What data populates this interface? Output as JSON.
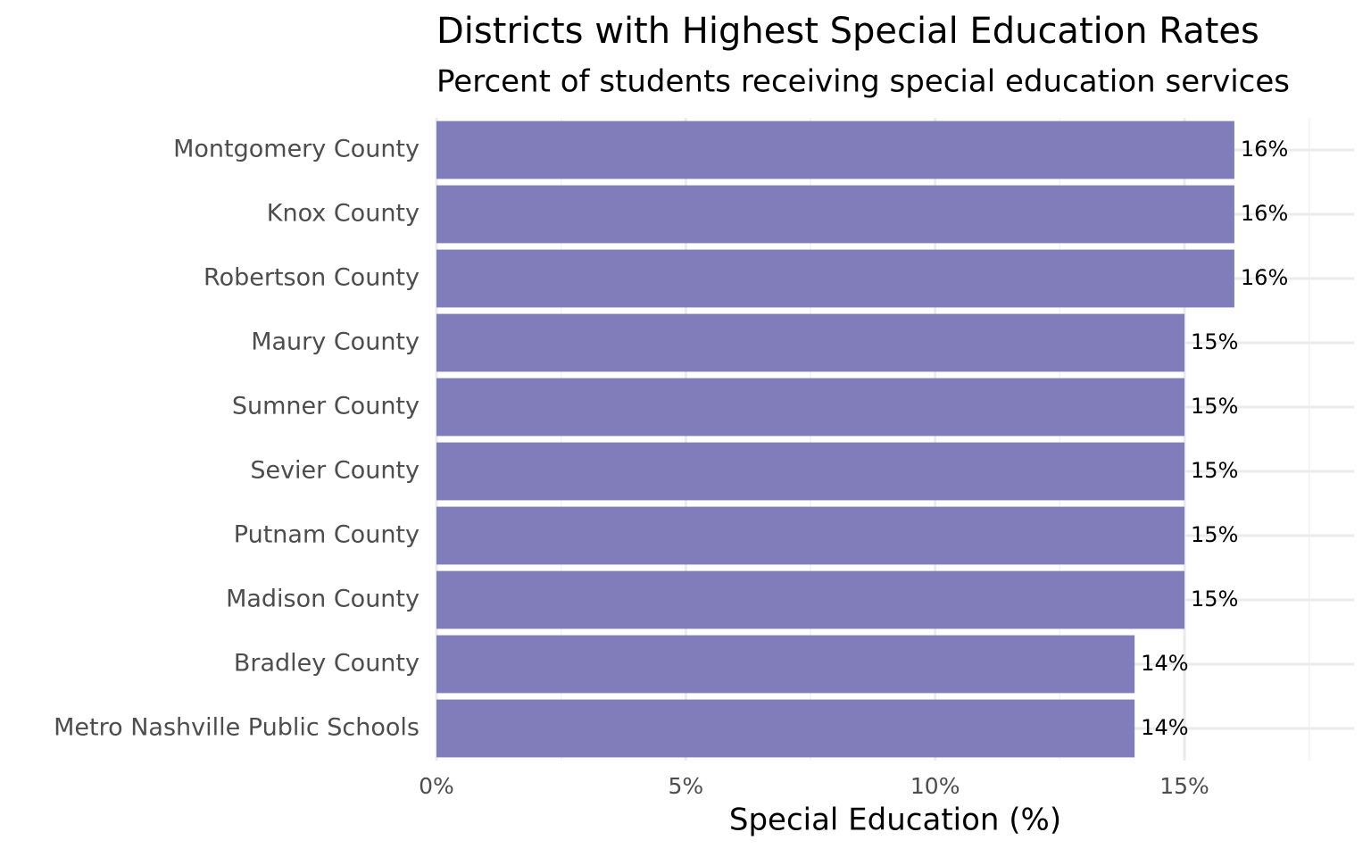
{
  "chart_data": {
    "type": "bar",
    "orientation": "horizontal",
    "title": "Districts with Highest Special Education Rates",
    "subtitle": "Percent of students receiving special education services",
    "x_label": "Special Education (%)",
    "categories": [
      "Montgomery County",
      "Knox County",
      "Robertson County",
      "Maury County",
      "Sumner County",
      "Sevier County",
      "Putnam County",
      "Madison County",
      "Bradley County",
      "Metro Nashville Public Schools"
    ],
    "values": [
      16,
      16,
      16,
      15,
      15,
      15,
      15,
      15,
      14,
      14
    ],
    "value_labels": [
      "16%",
      "16%",
      "16%",
      "15%",
      "15%",
      "15%",
      "15%",
      "15%",
      "14%",
      "14%"
    ],
    "color": "#807dba",
    "xlim": [
      0,
      18.4
    ],
    "xticks": [
      {
        "value": 0,
        "label": "0%"
      },
      {
        "value": 5,
        "label": "5%"
      },
      {
        "value": 10,
        "label": "10%"
      },
      {
        "value": 15,
        "label": "15%"
      }
    ],
    "minor_xticks": [
      2.5,
      7.5,
      12.5,
      17.5
    ],
    "grid": true
  }
}
